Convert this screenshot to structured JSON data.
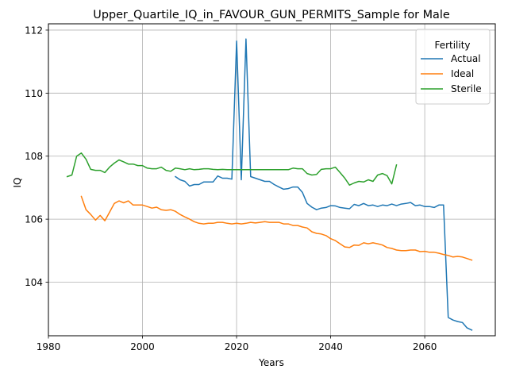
{
  "chart_data": {
    "type": "line",
    "title": "Upper_Quartile_IQ_in_FAVOUR_GUN_PERMITS_Sample for Male",
    "xlabel": "Years",
    "ylabel": "IQ",
    "xlim": [
      1980,
      2075
    ],
    "ylim": [
      102.3,
      112.2
    ],
    "xticks": [
      1980,
      2000,
      2020,
      2040,
      2060
    ],
    "yticks": [
      104,
      106,
      108,
      110,
      112
    ],
    "grid": true,
    "legend": {
      "title": "Fertility",
      "placement": "upper right"
    },
    "colors": {
      "Actual": "#1f77b4",
      "Ideal": "#ff7f0e",
      "Sterile": "#2ca02c"
    },
    "series": [
      {
        "name": "Actual",
        "x": [
          2007,
          2008,
          2009,
          2010,
          2011,
          2012,
          2013,
          2014,
          2015,
          2016,
          2017,
          2018,
          2019,
          2020,
          2021,
          2022,
          2023,
          2024,
          2025,
          2026,
          2027,
          2028,
          2029,
          2030,
          2031,
          2032,
          2033,
          2034,
          2035,
          2036,
          2037,
          2038,
          2039,
          2040,
          2041,
          2042,
          2043,
          2044,
          2045,
          2046,
          2047,
          2048,
          2049,
          2050,
          2051,
          2052,
          2053,
          2054,
          2055,
          2056,
          2057,
          2058,
          2059,
          2060,
          2061,
          2062,
          2063,
          2064,
          2065,
          2066,
          2067,
          2068,
          2069,
          2070
        ],
        "y": [
          107.35,
          107.25,
          107.2,
          107.05,
          107.1,
          107.1,
          107.18,
          107.18,
          107.18,
          107.37,
          107.3,
          107.3,
          107.27,
          111.65,
          107.25,
          111.72,
          107.35,
          107.3,
          107.25,
          107.2,
          107.2,
          107.1,
          107.02,
          106.95,
          106.97,
          107.02,
          107.02,
          106.85,
          106.5,
          106.38,
          106.3,
          106.35,
          106.37,
          106.43,
          106.42,
          106.37,
          106.35,
          106.33,
          106.47,
          106.43,
          106.5,
          106.43,
          106.45,
          106.4,
          106.45,
          106.43,
          106.48,
          106.43,
          106.48,
          106.5,
          106.53,
          106.43,
          106.45,
          106.4,
          106.4,
          106.37,
          106.45,
          106.45,
          102.88,
          102.8,
          102.75,
          102.72,
          102.55,
          102.48
        ]
      },
      {
        "name": "Ideal",
        "x": [
          1987,
          1988,
          1989,
          1990,
          1991,
          1992,
          1993,
          1994,
          1995,
          1996,
          1997,
          1998,
          1999,
          2000,
          2001,
          2002,
          2003,
          2004,
          2005,
          2006,
          2007,
          2008,
          2009,
          2010,
          2011,
          2012,
          2013,
          2014,
          2015,
          2016,
          2017,
          2018,
          2019,
          2020,
          2021,
          2022,
          2023,
          2024,
          2025,
          2026,
          2027,
          2028,
          2029,
          2030,
          2031,
          2032,
          2033,
          2034,
          2035,
          2036,
          2037,
          2038,
          2039,
          2040,
          2041,
          2042,
          2043,
          2044,
          2045,
          2046,
          2047,
          2048,
          2049,
          2050,
          2051,
          2052,
          2053,
          2054,
          2055,
          2056,
          2057,
          2058,
          2059,
          2060,
          2061,
          2062,
          2063,
          2064,
          2065,
          2066,
          2067,
          2068,
          2069,
          2070
        ],
        "y": [
          106.72,
          106.3,
          106.15,
          105.97,
          106.12,
          105.95,
          106.22,
          106.5,
          106.58,
          106.52,
          106.58,
          106.45,
          106.45,
          106.45,
          106.4,
          106.35,
          106.38,
          106.3,
          106.28,
          106.3,
          106.25,
          106.15,
          106.07,
          106,
          105.92,
          105.87,
          105.85,
          105.87,
          105.87,
          105.9,
          105.9,
          105.87,
          105.85,
          105.87,
          105.85,
          105.87,
          105.9,
          105.88,
          105.9,
          105.92,
          105.9,
          105.9,
          105.9,
          105.85,
          105.85,
          105.8,
          105.8,
          105.75,
          105.72,
          105.6,
          105.55,
          105.53,
          105.48,
          105.38,
          105.32,
          105.22,
          105.12,
          105.1,
          105.18,
          105.17,
          105.25,
          105.22,
          105.25,
          105.22,
          105.18,
          105.1,
          105.07,
          105.02,
          105,
          105,
          105.02,
          105.02,
          104.97,
          104.98,
          104.95,
          104.95,
          104.92,
          104.88,
          104.85,
          104.8,
          104.82,
          104.8,
          104.75,
          104.7
        ]
      },
      {
        "name": "Sterile",
        "x": [
          1984,
          1985,
          1986,
          1987,
          1988,
          1989,
          1990,
          1991,
          1992,
          1993,
          1994,
          1995,
          1996,
          1997,
          1998,
          1999,
          2000,
          2001,
          2002,
          2003,
          2004,
          2005,
          2006,
          2007,
          2008,
          2009,
          2010,
          2011,
          2012,
          2013,
          2014,
          2015,
          2016,
          2017,
          2018,
          2019,
          2020,
          2021,
          2022,
          2023,
          2024,
          2025,
          2026,
          2027,
          2028,
          2029,
          2030,
          2031,
          2032,
          2033,
          2034,
          2035,
          2036,
          2037,
          2038,
          2039,
          2040,
          2041,
          2042,
          2043,
          2044,
          2045,
          2046,
          2047,
          2048,
          2049,
          2050,
          2051,
          2052,
          2053,
          2054
        ],
        "y": [
          107.35,
          107.4,
          108,
          108.1,
          107.9,
          107.58,
          107.55,
          107.55,
          107.48,
          107.65,
          107.78,
          107.88,
          107.82,
          107.75,
          107.75,
          107.7,
          107.7,
          107.62,
          107.6,
          107.6,
          107.65,
          107.55,
          107.52,
          107.62,
          107.6,
          107.57,
          107.6,
          107.57,
          107.58,
          107.6,
          107.6,
          107.58,
          107.57,
          107.58,
          107.57,
          107.57,
          107.57,
          107.57,
          107.57,
          107.57,
          107.57,
          107.57,
          107.57,
          107.57,
          107.57,
          107.57,
          107.57,
          107.57,
          107.62,
          107.6,
          107.6,
          107.45,
          107.4,
          107.42,
          107.58,
          107.6,
          107.6,
          107.65,
          107.48,
          107.3,
          107.08,
          107.15,
          107.2,
          107.18,
          107.25,
          107.2,
          107.4,
          107.45,
          107.38,
          107.12,
          107.72
        ]
      }
    ]
  }
}
